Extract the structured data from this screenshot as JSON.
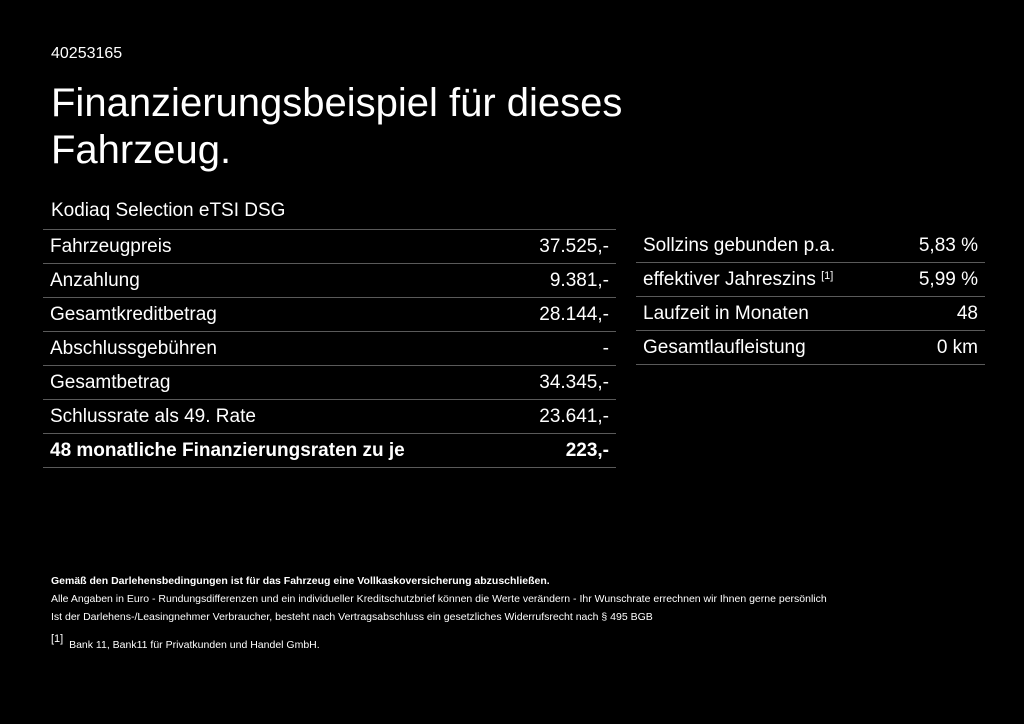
{
  "offer_id": "40253165",
  "title": "Finanzierungsbeispiel für dieses Fahrzeug.",
  "model": "Kodiaq Selection eTSI DSG",
  "left_table": [
    {
      "label": "Fahrzeugpreis",
      "value": "37.525,-"
    },
    {
      "label": "Anzahlung",
      "value": "9.381,-"
    },
    {
      "label": "Gesamtkreditbetrag",
      "value": "28.144,-"
    },
    {
      "label": "Abschlussgebühren",
      "value": "-"
    },
    {
      "label": "Gesamtbetrag",
      "value": "34.345,-"
    },
    {
      "label": "Schlussrate als 49. Rate",
      "value": "23.641,-"
    },
    {
      "label": "48 monatliche Finanzierungsraten zu je",
      "value": "223,-"
    }
  ],
  "right_table": [
    {
      "label": "Sollzins gebunden p.a.",
      "sup": "",
      "value": "5,83 %"
    },
    {
      "label": "effektiver Jahreszins",
      "sup": "[1]",
      "value": "5,99 %"
    },
    {
      "label": "Laufzeit in Monaten",
      "sup": "",
      "value": "48"
    },
    {
      "label": "Gesamtlaufleistung",
      "sup": "",
      "value": "0 km"
    }
  ],
  "notes": {
    "bold": "Gemäß den Darlehensbedingungen ist für das Fahrzeug eine Vollkaskoversicherung abzuschließen.",
    "line1": "Alle Angaben in Euro - Rundungsdifferenzen und ein individueller Kreditschutzbrief können die Werte verändern - Ihr Wunschrate errechnen wir Ihnen gerne persönlich",
    "line2": "Ist der Darlehens-/Leasingnehmer Verbraucher, besteht nach Vertragsabschluss ein gesetzliches Widerrufsrecht nach § 495 BGB",
    "footnote_mark": "[1]",
    "footnote": "Bank 11, Bank11 für Privatkunden und Handel GmbH."
  }
}
